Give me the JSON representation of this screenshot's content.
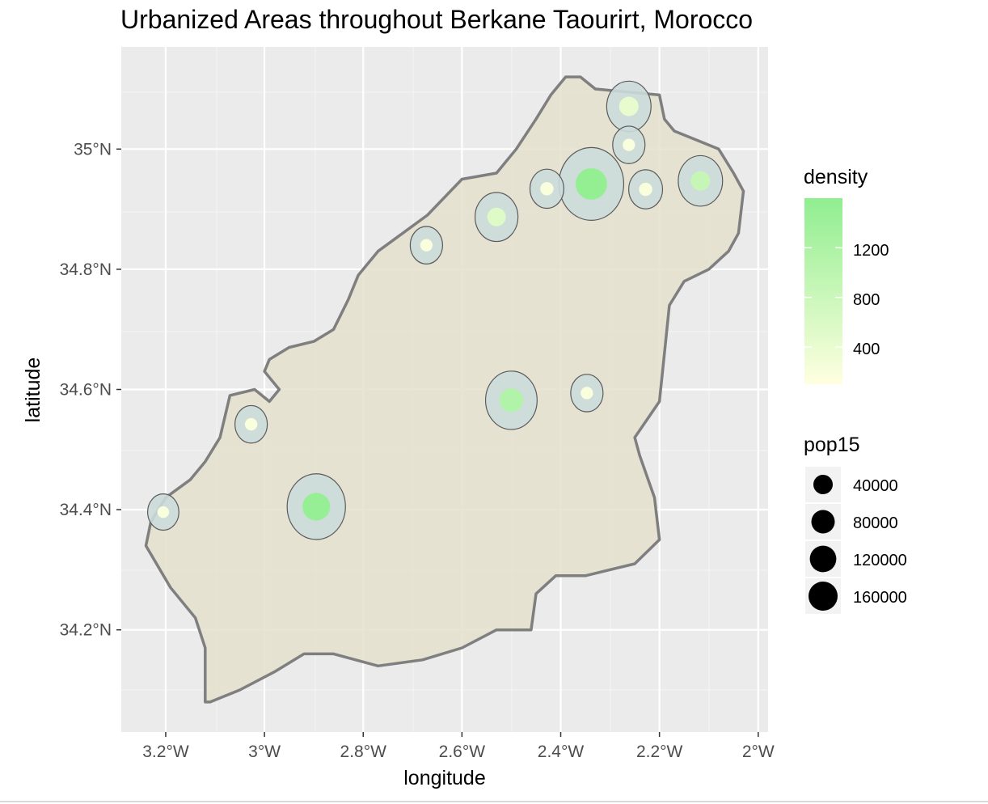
{
  "title": "Urbanized Areas throughout Berkane Taourirt, Morocco",
  "x_axis_label": "longitude",
  "y_axis_label": "latitude",
  "x_ticks": [
    "3.2°W",
    "3°W",
    "2.8°W",
    "2.6°W",
    "2.4°W",
    "2.2°W",
    "2°W"
  ],
  "y_ticks": [
    "35°N",
    "34.8°N",
    "34.6°N",
    "34.4°N",
    "34.2°N"
  ],
  "legend_density": {
    "title": "density",
    "labels": [
      "1200",
      "800",
      "400"
    ]
  },
  "legend_pop": {
    "title": "pop15",
    "labels": [
      "40000",
      "80000",
      "120000",
      "160000"
    ]
  },
  "colors": {
    "panel_background": "#ebebeb",
    "grid": "#ffffff",
    "province_fill": "#e5e0ce",
    "province_outline": "#7f7f7f",
    "urban_fill": "#cbdcda",
    "urban_outline": "#5a5a5a",
    "density_low": "#ffffe0",
    "density_high": "#90ee90"
  },
  "chart_data": {
    "type": "map",
    "xlim": [
      -3.29,
      -1.98
    ],
    "ylim": [
      34.03,
      35.17
    ],
    "x_tick_values": [
      -3.2,
      -3.0,
      -2.8,
      -2.6,
      -2.4,
      -2.2,
      -2.0
    ],
    "y_tick_values": [
      35.0,
      34.8,
      34.6,
      34.4,
      34.2
    ],
    "density_range": [
      100,
      1600
    ],
    "density_legend_values": [
      1200,
      800,
      400
    ],
    "pop_legend_values": [
      40000,
      80000,
      120000,
      160000
    ],
    "province_outline": [
      [
        -3.11,
        34.08
      ],
      [
        -3.05,
        34.1
      ],
      [
        -2.98,
        34.13
      ],
      [
        -2.92,
        34.16
      ],
      [
        -2.86,
        34.16
      ],
      [
        -2.77,
        34.14
      ],
      [
        -2.68,
        34.15
      ],
      [
        -2.6,
        34.17
      ],
      [
        -2.53,
        34.2
      ],
      [
        -2.46,
        34.2
      ],
      [
        -2.45,
        34.26
      ],
      [
        -2.41,
        34.29
      ],
      [
        -2.35,
        34.29
      ],
      [
        -2.25,
        34.31
      ],
      [
        -2.2,
        34.35
      ],
      [
        -2.21,
        34.42
      ],
      [
        -2.24,
        34.49
      ],
      [
        -2.25,
        34.52
      ],
      [
        -2.2,
        34.58
      ],
      [
        -2.19,
        34.66
      ],
      [
        -2.18,
        34.74
      ],
      [
        -2.15,
        34.78
      ],
      [
        -2.1,
        34.8
      ],
      [
        -2.06,
        34.83
      ],
      [
        -2.04,
        34.86
      ],
      [
        -2.03,
        34.93
      ],
      [
        -2.05,
        34.96
      ],
      [
        -2.08,
        35.0
      ],
      [
        -2.14,
        35.02
      ],
      [
        -2.17,
        35.03
      ],
      [
        -2.19,
        35.05
      ],
      [
        -2.2,
        35.09
      ],
      [
        -2.33,
        35.1
      ],
      [
        -2.36,
        35.12
      ],
      [
        -2.39,
        35.12
      ],
      [
        -2.42,
        35.09
      ],
      [
        -2.45,
        35.05
      ],
      [
        -2.49,
        35.0
      ],
      [
        -2.53,
        34.96
      ],
      [
        -2.6,
        34.95
      ],
      [
        -2.67,
        34.89
      ],
      [
        -2.72,
        34.86
      ],
      [
        -2.77,
        34.83
      ],
      [
        -2.81,
        34.79
      ],
      [
        -2.83,
        34.75
      ],
      [
        -2.86,
        34.7
      ],
      [
        -2.9,
        34.68
      ],
      [
        -2.95,
        34.67
      ],
      [
        -2.99,
        34.65
      ],
      [
        -3.0,
        34.63
      ],
      [
        -2.97,
        34.6
      ],
      [
        -2.99,
        34.58
      ],
      [
        -3.02,
        34.6
      ],
      [
        -3.07,
        34.59
      ],
      [
        -3.09,
        34.52
      ],
      [
        -3.12,
        34.48
      ],
      [
        -3.15,
        34.45
      ],
      [
        -3.2,
        34.42
      ],
      [
        -3.23,
        34.38
      ],
      [
        -3.24,
        34.34
      ],
      [
        -3.19,
        34.27
      ],
      [
        -3.14,
        34.22
      ],
      [
        -3.12,
        34.17
      ],
      [
        -3.12,
        34.08
      ]
    ],
    "urban_areas": [
      {
        "lon": -2.895,
        "lat": 34.405,
        "density": 1500,
        "pop": 110000
      },
      {
        "lon": -2.5,
        "lat": 34.582,
        "density": 1150,
        "pop": 75000
      },
      {
        "lon": -2.338,
        "lat": 34.942,
        "density": 1550,
        "pop": 150000
      },
      {
        "lon": -2.53,
        "lat": 34.887,
        "density": 560,
        "pop": 40000
      },
      {
        "lon": -2.117,
        "lat": 34.947,
        "density": 880,
        "pop": 45000
      },
      {
        "lon": -2.262,
        "lat": 35.071,
        "density": 420,
        "pop": 45000
      },
      {
        "lon": -2.428,
        "lat": 34.934,
        "density": 180,
        "pop": 15000
      },
      {
        "lon": -2.228,
        "lat": 34.933,
        "density": 180,
        "pop": 15000
      },
      {
        "lon": -2.262,
        "lat": 35.007,
        "density": 180,
        "pop": 12000
      },
      {
        "lon": -2.672,
        "lat": 34.84,
        "density": 180,
        "pop": 12000
      },
      {
        "lon": -2.347,
        "lat": 34.594,
        "density": 180,
        "pop": 12000
      },
      {
        "lon": -3.027,
        "lat": 34.542,
        "density": 180,
        "pop": 12000
      },
      {
        "lon": -3.205,
        "lat": 34.396,
        "density": 180,
        "pop": 10000
      }
    ]
  }
}
